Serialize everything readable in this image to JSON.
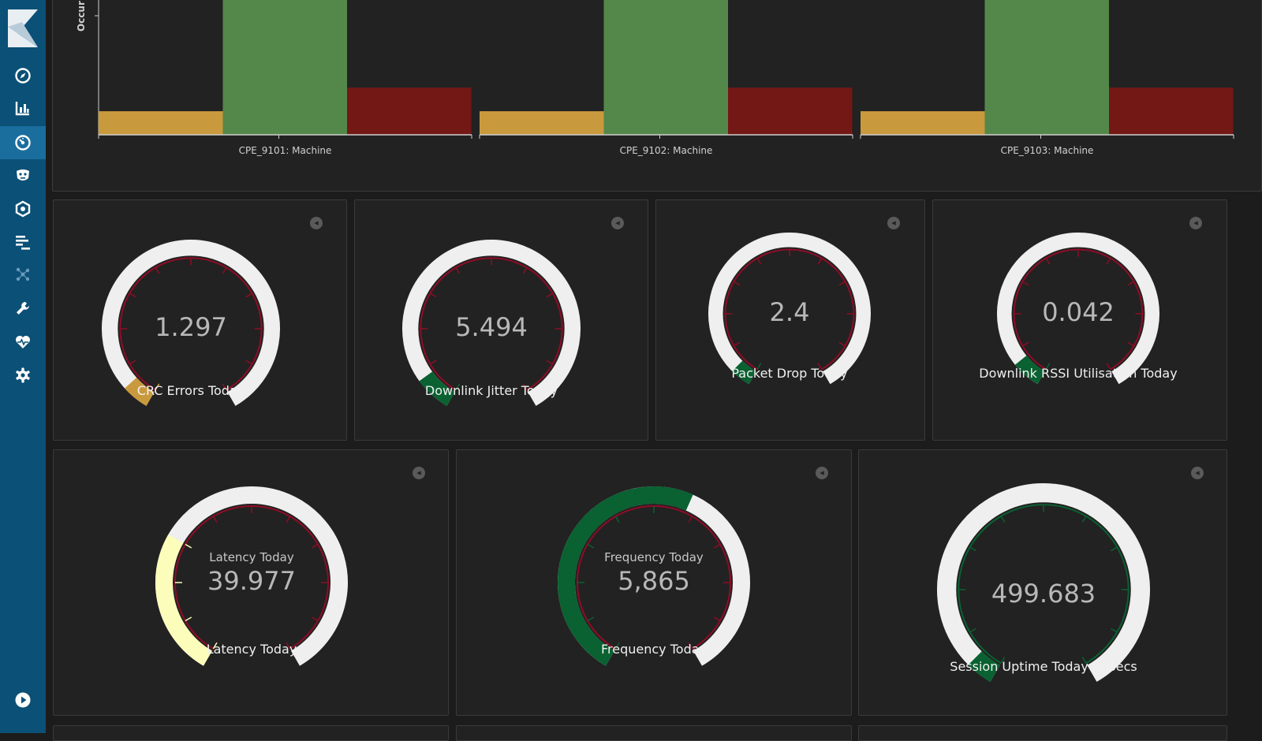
{
  "sidebar": {
    "items": [
      {
        "name": "discover",
        "icon": "compass-icon"
      },
      {
        "name": "visualize",
        "icon": "bar-chart-icon"
      },
      {
        "name": "dashboard",
        "icon": "dashboard-icon",
        "active": true
      },
      {
        "name": "timelion",
        "icon": "timelion-icon"
      },
      {
        "name": "machine-learning",
        "icon": "ml-icon"
      },
      {
        "name": "apm",
        "icon": "apm-icon"
      },
      {
        "name": "graph",
        "icon": "graph-icon"
      },
      {
        "name": "dev-tools",
        "icon": "wrench-icon"
      },
      {
        "name": "monitoring",
        "icon": "heartbeat-icon"
      },
      {
        "name": "management",
        "icon": "gear-icon"
      }
    ],
    "bottom_icon": "play-icon"
  },
  "chart_data": {
    "type": "bar",
    "ylabel": "Occur",
    "categories": [
      "CPE_9101: Machine",
      "CPE_9102: Machine",
      "CPE_9103: Machine"
    ],
    "series_colors": [
      "#c99a3d",
      "#54884a",
      "#731815"
    ],
    "note_values": "relative heights only; y-axis ticks clipped",
    "series": [
      {
        "values": [
          0.17,
          0.17,
          0.17
        ]
      },
      {
        "values": [
          1.0,
          1.0,
          1.0
        ]
      },
      {
        "values": [
          0.34,
          0.34,
          0.34
        ]
      }
    ]
  },
  "gauges": [
    {
      "id": "crc",
      "value": "1.297",
      "label": "CRC Errors Today",
      "fraction": 0.06,
      "fill": "#c99a3d",
      "scale": "#8e0d26"
    },
    {
      "id": "jitter",
      "value": "5.494",
      "label": "Downlink Jitter Today",
      "fraction": 0.08,
      "fill": "#0a6131",
      "scale": "#8e0d26"
    },
    {
      "id": "packet",
      "value": "2.4",
      "label": "Packet Drop Today",
      "fraction": 0.05,
      "fill": "#0a6131",
      "scale": "#8e0d26"
    },
    {
      "id": "rssi",
      "value": "0.042",
      "label": "Downlink RSSI Utilisation Today",
      "fraction": 0.07,
      "fill": "#0a6131",
      "scale": "#8e0d26"
    },
    {
      "id": "latency",
      "value": "39.977",
      "label": "Latency Today",
      "inner_label": "Latency Today",
      "fraction": 0.3,
      "fill": "#fdfdbb",
      "scale": "#8e0d26"
    },
    {
      "id": "frequency",
      "value": "5,865",
      "label": "Frequency Today",
      "inner_label": "Frequency Today",
      "fraction": 0.58,
      "fill": "#0a6131",
      "scale": "#8e0d26"
    },
    {
      "id": "uptime",
      "value": "499.683",
      "label": "Session Uptime Today in Secs",
      "fraction": 0.05,
      "fill": "#0a6131",
      "scale": "#0a6131"
    }
  ],
  "colors": {
    "sidebar": "#0b5076",
    "panel": "#222222",
    "gauge_track": "#efefef"
  }
}
